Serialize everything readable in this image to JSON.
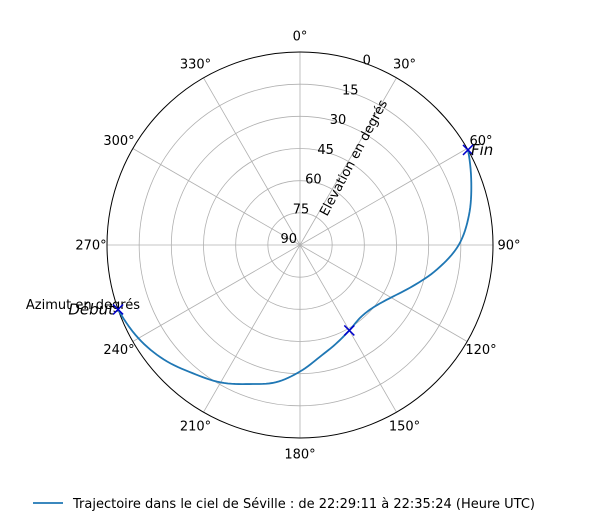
{
  "chart_data": {
    "type": "polar-line",
    "angular_axis": {
      "label": "Azimut en degrés",
      "zero_location": "top",
      "direction": "clockwise",
      "ticks": [
        0,
        30,
        60,
        90,
        120,
        150,
        180,
        210,
        240,
        270,
        300,
        330
      ],
      "tick_labels": [
        "0°",
        "30°",
        "60°",
        "90°",
        "120°",
        "150°",
        "180°",
        "210°",
        "240°",
        "270°",
        "300°",
        "330°"
      ]
    },
    "radial_axis": {
      "label": "Elevation en degrés",
      "range": [
        90,
        0
      ],
      "ticks": [
        90,
        75,
        60,
        45,
        30,
        15,
        0
      ],
      "tick_labels": [
        "90",
        "75",
        "60",
        "45",
        "30",
        "15",
        "0"
      ]
    },
    "grid": true,
    "series": [
      {
        "name": "Trajectoire dans le ciel de Séville : de 22:29:11 à 22:35:24 (Heure UTC)",
        "color": "#1f77b4",
        "azimuth": [
          250.5,
          240,
          230,
          220,
          210,
          200,
          190,
          180,
          170,
          160,
          150,
          140,
          130,
          120,
          110,
          100,
          90,
          80,
          70,
          60.5
        ],
        "elevation": [
          0,
          3,
          7,
          12,
          16,
          21,
          25,
          31,
          37,
          41,
          44,
          46,
          45,
          41,
          34,
          25,
          16,
          10,
          5,
          0
        ]
      }
    ],
    "markers": [
      {
        "label": "Début",
        "azimuth": 250.5,
        "elevation": 0,
        "symbol": "x",
        "color": "#0000cc"
      },
      {
        "label": "",
        "azimuth": 150,
        "elevation": 44,
        "symbol": "x",
        "color": "#0000cc"
      },
      {
        "label": "Fin",
        "azimuth": 60.5,
        "elevation": 0,
        "symbol": "x",
        "color": "#0000cc"
      }
    ],
    "legend": "bottom"
  }
}
